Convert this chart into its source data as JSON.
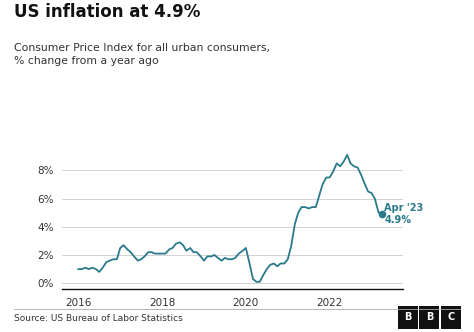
{
  "title": "US inflation at 4.9%",
  "subtitle": "Consumer Price Index for all urban consumers,\n% change from a year ago",
  "source": "Source: US Bureau of Labor Statistics",
  "line_color": "#2a7a8c",
  "bg_color": "#ffffff",
  "plot_bg_color": "#ffffff",
  "annotation_label": "Apr '23\n4.9%",
  "yticks": [
    0,
    2,
    4,
    6,
    8
  ],
  "xticks": [
    2016,
    2018,
    2020,
    2022
  ],
  "ylim": [
    -0.4,
    10.2
  ],
  "xlim_start": 2015.6,
  "xlim_end": 2023.75,
  "data": [
    [
      2016.0,
      1.0
    ],
    [
      2016.08,
      1.0
    ],
    [
      2016.17,
      1.1
    ],
    [
      2016.25,
      1.0
    ],
    [
      2016.33,
      1.1
    ],
    [
      2016.42,
      1.0
    ],
    [
      2016.5,
      0.8
    ],
    [
      2016.58,
      1.1
    ],
    [
      2016.67,
      1.5
    ],
    [
      2016.75,
      1.6
    ],
    [
      2016.83,
      1.7
    ],
    [
      2016.92,
      1.7
    ],
    [
      2017.0,
      2.5
    ],
    [
      2017.08,
      2.7
    ],
    [
      2017.17,
      2.4
    ],
    [
      2017.25,
      2.2
    ],
    [
      2017.33,
      1.9
    ],
    [
      2017.42,
      1.6
    ],
    [
      2017.5,
      1.7
    ],
    [
      2017.58,
      1.9
    ],
    [
      2017.67,
      2.2
    ],
    [
      2017.75,
      2.2
    ],
    [
      2017.83,
      2.1
    ],
    [
      2017.92,
      2.1
    ],
    [
      2018.0,
      2.1
    ],
    [
      2018.08,
      2.1
    ],
    [
      2018.17,
      2.4
    ],
    [
      2018.25,
      2.5
    ],
    [
      2018.33,
      2.8
    ],
    [
      2018.42,
      2.9
    ],
    [
      2018.5,
      2.7
    ],
    [
      2018.58,
      2.3
    ],
    [
      2018.67,
      2.5
    ],
    [
      2018.75,
      2.2
    ],
    [
      2018.83,
      2.2
    ],
    [
      2018.92,
      1.9
    ],
    [
      2019.0,
      1.6
    ],
    [
      2019.08,
      1.9
    ],
    [
      2019.17,
      1.9
    ],
    [
      2019.25,
      2.0
    ],
    [
      2019.33,
      1.8
    ],
    [
      2019.42,
      1.6
    ],
    [
      2019.5,
      1.8
    ],
    [
      2019.58,
      1.7
    ],
    [
      2019.67,
      1.7
    ],
    [
      2019.75,
      1.8
    ],
    [
      2019.83,
      2.1
    ],
    [
      2019.92,
      2.3
    ],
    [
      2020.0,
      2.5
    ],
    [
      2020.08,
      1.5
    ],
    [
      2020.17,
      0.3
    ],
    [
      2020.25,
      0.1
    ],
    [
      2020.33,
      0.1
    ],
    [
      2020.42,
      0.6
    ],
    [
      2020.5,
      1.0
    ],
    [
      2020.58,
      1.3
    ],
    [
      2020.67,
      1.4
    ],
    [
      2020.75,
      1.2
    ],
    [
      2020.83,
      1.4
    ],
    [
      2020.92,
      1.4
    ],
    [
      2021.0,
      1.7
    ],
    [
      2021.08,
      2.6
    ],
    [
      2021.17,
      4.2
    ],
    [
      2021.25,
      5.0
    ],
    [
      2021.33,
      5.4
    ],
    [
      2021.42,
      5.4
    ],
    [
      2021.5,
      5.3
    ],
    [
      2021.58,
      5.4
    ],
    [
      2021.67,
      5.4
    ],
    [
      2021.75,
      6.2
    ],
    [
      2021.83,
      7.0
    ],
    [
      2021.92,
      7.5
    ],
    [
      2022.0,
      7.5
    ],
    [
      2022.08,
      7.9
    ],
    [
      2022.17,
      8.5
    ],
    [
      2022.25,
      8.3
    ],
    [
      2022.33,
      8.6
    ],
    [
      2022.42,
      9.1
    ],
    [
      2022.5,
      8.5
    ],
    [
      2022.58,
      8.3
    ],
    [
      2022.67,
      8.2
    ],
    [
      2022.75,
      7.7
    ],
    [
      2022.83,
      7.1
    ],
    [
      2022.92,
      6.5
    ],
    [
      2023.0,
      6.4
    ],
    [
      2023.08,
      6.0
    ],
    [
      2023.17,
      5.0
    ],
    [
      2023.25,
      4.9
    ]
  ]
}
